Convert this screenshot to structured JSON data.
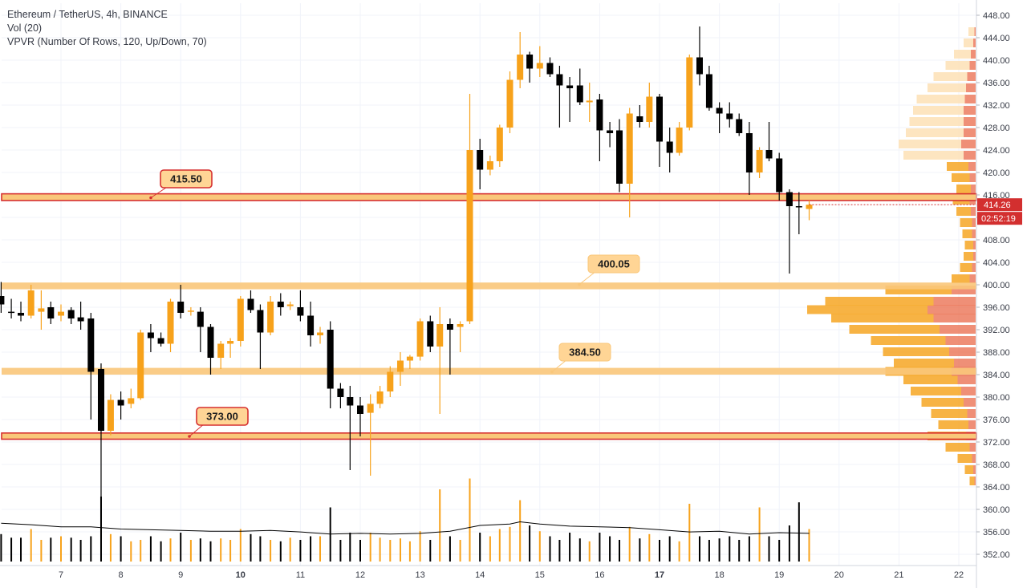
{
  "legend": {
    "symbol": "Ethereum / TetherUS, 4h, BINANCE",
    "volume": "Vol (20)",
    "vpvr": "VPVR (Number Of Rows, 120, Up/Down, 70)"
  },
  "colors": {
    "up": "#f7a21b",
    "down": "#000000",
    "zone_orange": "#f9c77a",
    "zone_red": "#d62f2f",
    "label_fill": "#ffd595",
    "price_tag": "#d32f2f",
    "vpvr_dark": "#f6a623",
    "vpvr_light": "#fde0b5",
    "vpvr_red": "#e9694a",
    "vol_ma": "#000000",
    "axis_text": "#363a45",
    "grid": "#f0f3fa"
  },
  "chart_data": {
    "type": "candlestick",
    "title": "Ethereum / TetherUS, 4h, BINANCE",
    "interval_hours": 4,
    "x_axis": {
      "labels": [
        "7",
        "8",
        "9",
        "10",
        "11",
        "12",
        "13",
        "14",
        "15",
        "16",
        "17",
        "18",
        "19",
        "20",
        "21",
        "22"
      ],
      "bold_labels": [
        "10",
        "17"
      ],
      "range_day": [
        6.0,
        22.2
      ]
    },
    "y_axis": {
      "range": [
        350,
        450
      ],
      "tick_labels": [
        "352.00",
        "356.00",
        "360.00",
        "364.00",
        "368.00",
        "372.00",
        "376.00",
        "380.00",
        "384.00",
        "388.00",
        "392.00",
        "396.00",
        "400.00",
        "404.00",
        "408.00",
        "412.00",
        "416.00",
        "420.00",
        "424.00",
        "428.00",
        "432.00",
        "436.00",
        "440.00",
        "444.00",
        "448.00"
      ]
    },
    "current_price": "414.26",
    "countdown": "02:52:19",
    "levels": [
      {
        "value": 415.5,
        "label": "415.50",
        "style": "red",
        "band": [
          415.0,
          416.2
        ]
      },
      {
        "value": 400.05,
        "label": "400.05",
        "style": "orange",
        "band": [
          399.2,
          400.4
        ]
      },
      {
        "value": 384.5,
        "label": "384.50",
        "style": "orange",
        "band": [
          384.0,
          385.2
        ]
      },
      {
        "value": 373.0,
        "label": "373.00",
        "style": "red",
        "band": [
          372.5,
          373.6
        ]
      }
    ],
    "candles": [
      {
        "t": 6.0,
        "o": 398.0,
        "h": 400.5,
        "l": 395.0,
        "c": 396.5
      },
      {
        "t": 6.17,
        "o": 395.2,
        "h": 397.5,
        "l": 394.0,
        "c": 395.0
      },
      {
        "t": 6.33,
        "o": 395.0,
        "h": 397.0,
        "l": 393.5,
        "c": 394.5
      },
      {
        "t": 6.5,
        "o": 394.5,
        "h": 400.0,
        "l": 394.0,
        "c": 399.0
      },
      {
        "t": 6.67,
        "o": 395.2,
        "h": 399.0,
        "l": 392.0,
        "c": 395.8
      },
      {
        "t": 6.83,
        "o": 396.0,
        "h": 397.0,
        "l": 393.0,
        "c": 394.0
      },
      {
        "t": 7.0,
        "o": 394.5,
        "h": 396.5,
        "l": 393.5,
        "c": 395.2
      },
      {
        "t": 7.17,
        "o": 395.5,
        "h": 396.0,
        "l": 393.0,
        "c": 394.0
      },
      {
        "t": 7.33,
        "o": 394.2,
        "h": 397.0,
        "l": 392.0,
        "c": 393.5
      },
      {
        "t": 7.5,
        "o": 394.0,
        "h": 395.0,
        "l": 376.0,
        "c": 384.5
      },
      {
        "t": 7.67,
        "o": 385.0,
        "h": 386.0,
        "l": 355.0,
        "c": 374.0
      },
      {
        "t": 7.83,
        "o": 374.0,
        "h": 380.5,
        "l": 373.2,
        "c": 379.5
      },
      {
        "t": 8.0,
        "o": 379.5,
        "h": 381.0,
        "l": 376.0,
        "c": 378.5
      },
      {
        "t": 8.17,
        "o": 378.8,
        "h": 381.5,
        "l": 378.0,
        "c": 379.8
      },
      {
        "t": 8.33,
        "o": 379.8,
        "h": 392.0,
        "l": 379.5,
        "c": 391.5
      },
      {
        "t": 8.5,
        "o": 391.5,
        "h": 393.0,
        "l": 388.0,
        "c": 390.5
      },
      {
        "t": 8.67,
        "o": 390.5,
        "h": 391.5,
        "l": 389.0,
        "c": 389.5
      },
      {
        "t": 8.83,
        "o": 389.5,
        "h": 397.5,
        "l": 388.0,
        "c": 397.0
      },
      {
        "t": 9.0,
        "o": 397.0,
        "h": 400.0,
        "l": 394.0,
        "c": 395.0
      },
      {
        "t": 9.17,
        "o": 395.2,
        "h": 396.0,
        "l": 394.5,
        "c": 395.4
      },
      {
        "t": 9.33,
        "o": 395.2,
        "h": 396.0,
        "l": 388.0,
        "c": 392.5
      },
      {
        "t": 9.5,
        "o": 392.5,
        "h": 393.0,
        "l": 384.0,
        "c": 387.0
      },
      {
        "t": 9.67,
        "o": 387.0,
        "h": 390.0,
        "l": 385.0,
        "c": 389.5
      },
      {
        "t": 9.83,
        "o": 389.5,
        "h": 390.5,
        "l": 387.0,
        "c": 390.0
      },
      {
        "t": 10.0,
        "o": 390.0,
        "h": 398.0,
        "l": 389.0,
        "c": 397.5
      },
      {
        "t": 10.17,
        "o": 397.5,
        "h": 399.0,
        "l": 395.0,
        "c": 395.5
      },
      {
        "t": 10.33,
        "o": 395.5,
        "h": 396.5,
        "l": 385.0,
        "c": 391.5
      },
      {
        "t": 10.5,
        "o": 391.5,
        "h": 398.0,
        "l": 391.0,
        "c": 397.0
      },
      {
        "t": 10.67,
        "o": 397.0,
        "h": 398.5,
        "l": 394.5,
        "c": 396.0
      },
      {
        "t": 10.83,
        "o": 396.2,
        "h": 397.0,
        "l": 395.5,
        "c": 396.5
      },
      {
        "t": 11.0,
        "o": 396.0,
        "h": 399.0,
        "l": 393.5,
        "c": 394.5
      },
      {
        "t": 11.17,
        "o": 394.5,
        "h": 397.0,
        "l": 389.0,
        "c": 391.0
      },
      {
        "t": 11.33,
        "o": 391.0,
        "h": 392.5,
        "l": 389.5,
        "c": 391.5
      },
      {
        "t": 11.5,
        "o": 392.0,
        "h": 393.5,
        "l": 378.0,
        "c": 381.5
      },
      {
        "t": 11.67,
        "o": 381.5,
        "h": 382.5,
        "l": 378.0,
        "c": 380.0
      },
      {
        "t": 11.83,
        "o": 380.0,
        "h": 382.0,
        "l": 367.0,
        "c": 378.5
      },
      {
        "t": 12.0,
        "o": 378.5,
        "h": 380.0,
        "l": 373.0,
        "c": 377.0
      },
      {
        "t": 12.17,
        "o": 377.2,
        "h": 380.5,
        "l": 366.0,
        "c": 378.8
      },
      {
        "t": 12.33,
        "o": 378.8,
        "h": 382.0,
        "l": 378.0,
        "c": 381.0
      },
      {
        "t": 12.5,
        "o": 381.0,
        "h": 385.5,
        "l": 380.0,
        "c": 384.5
      },
      {
        "t": 12.67,
        "o": 384.5,
        "h": 388.0,
        "l": 382.0,
        "c": 386.5
      },
      {
        "t": 12.83,
        "o": 386.5,
        "h": 387.5,
        "l": 385.0,
        "c": 387.2
      },
      {
        "t": 13.0,
        "o": 387.2,
        "h": 394.0,
        "l": 386.5,
        "c": 393.5
      },
      {
        "t": 13.17,
        "o": 393.5,
        "h": 394.5,
        "l": 388.0,
        "c": 389.0
      },
      {
        "t": 13.33,
        "o": 389.0,
        "h": 396.0,
        "l": 377.0,
        "c": 393.0
      },
      {
        "t": 13.5,
        "o": 393.0,
        "h": 394.0,
        "l": 384.0,
        "c": 392.0
      },
      {
        "t": 13.67,
        "o": 392.5,
        "h": 393.5,
        "l": 388.0,
        "c": 393.0
      },
      {
        "t": 13.83,
        "o": 393.5,
        "h": 434.0,
        "l": 393.0,
        "c": 424.0
      },
      {
        "t": 14.0,
        "o": 424.0,
        "h": 426.0,
        "l": 417.0,
        "c": 420.5
      },
      {
        "t": 14.17,
        "o": 420.5,
        "h": 423.0,
        "l": 419.5,
        "c": 422.0
      },
      {
        "t": 14.33,
        "o": 422.0,
        "h": 428.5,
        "l": 421.0,
        "c": 428.0
      },
      {
        "t": 14.5,
        "o": 428.0,
        "h": 438.0,
        "l": 427.0,
        "c": 436.5
      },
      {
        "t": 14.67,
        "o": 436.5,
        "h": 445.0,
        "l": 435.0,
        "c": 441.0
      },
      {
        "t": 14.83,
        "o": 441.0,
        "h": 441.5,
        "l": 436.0,
        "c": 438.5
      },
      {
        "t": 15.0,
        "o": 438.5,
        "h": 442.5,
        "l": 437.0,
        "c": 439.5
      },
      {
        "t": 15.17,
        "o": 439.5,
        "h": 440.5,
        "l": 437.0,
        "c": 437.5
      },
      {
        "t": 15.33,
        "o": 437.5,
        "h": 439.0,
        "l": 428.0,
        "c": 435.5
      },
      {
        "t": 15.5,
        "o": 435.5,
        "h": 437.0,
        "l": 429.0,
        "c": 435.0
      },
      {
        "t": 15.67,
        "o": 435.5,
        "h": 438.5,
        "l": 432.0,
        "c": 432.5
      },
      {
        "t": 15.83,
        "o": 432.5,
        "h": 436.0,
        "l": 429.0,
        "c": 432.8
      },
      {
        "t": 16.0,
        "o": 433.0,
        "h": 434.0,
        "l": 422.0,
        "c": 427.5
      },
      {
        "t": 16.17,
        "o": 427.5,
        "h": 429.0,
        "l": 424.5,
        "c": 427.0
      },
      {
        "t": 16.33,
        "o": 427.5,
        "h": 429.5,
        "l": 416.5,
        "c": 418.0
      },
      {
        "t": 16.5,
        "o": 418.0,
        "h": 431.5,
        "l": 412.0,
        "c": 430.5
      },
      {
        "t": 16.67,
        "o": 430.0,
        "h": 432.0,
        "l": 428.0,
        "c": 429.0
      },
      {
        "t": 16.83,
        "o": 429.0,
        "h": 436.0,
        "l": 428.0,
        "c": 433.5
      },
      {
        "t": 17.0,
        "o": 433.5,
        "h": 434.0,
        "l": 421.0,
        "c": 425.5
      },
      {
        "t": 17.17,
        "o": 425.5,
        "h": 428.0,
        "l": 420.0,
        "c": 423.5
      },
      {
        "t": 17.33,
        "o": 423.5,
        "h": 429.0,
        "l": 423.0,
        "c": 428.0
      },
      {
        "t": 17.5,
        "o": 428.0,
        "h": 441.0,
        "l": 427.5,
        "c": 440.5
      },
      {
        "t": 17.67,
        "o": 440.5,
        "h": 446.0,
        "l": 435.5,
        "c": 437.5
      },
      {
        "t": 17.83,
        "o": 437.5,
        "h": 439.0,
        "l": 431.0,
        "c": 431.5
      },
      {
        "t": 18.0,
        "o": 431.5,
        "h": 432.5,
        "l": 427.0,
        "c": 430.5
      },
      {
        "t": 18.17,
        "o": 430.5,
        "h": 432.5,
        "l": 428.0,
        "c": 429.5
      },
      {
        "t": 18.33,
        "o": 429.5,
        "h": 430.5,
        "l": 426.5,
        "c": 427.0
      },
      {
        "t": 18.5,
        "o": 427.0,
        "h": 429.0,
        "l": 416.0,
        "c": 420.0
      },
      {
        "t": 18.67,
        "o": 420.0,
        "h": 424.5,
        "l": 419.0,
        "c": 424.0
      },
      {
        "t": 18.83,
        "o": 424.0,
        "h": 429.0,
        "l": 422.0,
        "c": 422.5
      },
      {
        "t": 19.0,
        "o": 422.5,
        "h": 423.5,
        "l": 415.0,
        "c": 416.5
      },
      {
        "t": 19.17,
        "o": 416.5,
        "h": 417.0,
        "l": 402.0,
        "c": 414.0
      },
      {
        "t": 19.33,
        "o": 414.0,
        "h": 416.5,
        "l": 409.0,
        "c": 413.8
      },
      {
        "t": 19.5,
        "o": 413.5,
        "h": 415.0,
        "l": 411.5,
        "c": 414.26
      }
    ],
    "volume": {
      "ma_period": 20,
      "note": "relative volume per candle, same order as candles",
      "values": [
        0.38,
        0.33,
        0.33,
        0.45,
        0.3,
        0.33,
        0.35,
        0.33,
        0.3,
        0.35,
        0.9,
        0.38,
        0.35,
        0.28,
        0.3,
        0.35,
        0.28,
        0.32,
        0.4,
        0.3,
        0.32,
        0.28,
        0.32,
        0.3,
        0.45,
        0.38,
        0.35,
        0.3,
        0.28,
        0.33,
        0.3,
        0.35,
        0.35,
        0.75,
        0.3,
        0.4,
        0.3,
        0.4,
        0.33,
        0.3,
        0.32,
        0.28,
        0.42,
        0.3,
        1.0,
        0.35,
        0.3,
        1.15,
        0.4,
        0.35,
        0.45,
        0.48,
        0.85,
        0.5,
        0.42,
        0.35,
        0.3,
        0.4,
        0.32,
        0.28,
        0.4,
        0.35,
        0.3,
        0.48,
        0.32,
        0.38,
        0.3,
        0.35,
        0.28,
        0.8,
        0.35,
        0.3,
        0.32,
        0.35,
        0.3,
        0.35,
        0.75,
        0.35,
        0.3,
        0.5,
        0.82,
        0.45,
        0.05
      ]
    },
    "volume_ma": {
      "note": "relative Vol(20) moving average, sampled across the day axis",
      "points": [
        [
          6.0,
          0.53
        ],
        [
          6.5,
          0.51
        ],
        [
          7.0,
          0.48
        ],
        [
          7.5,
          0.48
        ],
        [
          8.0,
          0.45
        ],
        [
          8.5,
          0.44
        ],
        [
          9.0,
          0.43
        ],
        [
          9.5,
          0.42
        ],
        [
          10.0,
          0.42
        ],
        [
          10.5,
          0.43
        ],
        [
          11.0,
          0.41
        ],
        [
          11.5,
          0.38
        ],
        [
          12.0,
          0.39
        ],
        [
          12.5,
          0.38
        ],
        [
          13.0,
          0.39
        ],
        [
          13.5,
          0.42
        ],
        [
          14.0,
          0.5
        ],
        [
          14.5,
          0.52
        ],
        [
          14.67,
          0.55
        ],
        [
          15.0,
          0.52
        ],
        [
          15.5,
          0.49
        ],
        [
          16.0,
          0.48
        ],
        [
          16.5,
          0.47
        ],
        [
          17.0,
          0.44
        ],
        [
          17.5,
          0.41
        ],
        [
          18.0,
          0.42
        ],
        [
          18.5,
          0.38
        ],
        [
          19.0,
          0.4
        ],
        [
          19.5,
          0.39
        ]
      ]
    },
    "vpvr": {
      "note": "relative volume per price level: [price, up, down]",
      "rows": [
        [
          365,
          0.04,
          0.01
        ],
        [
          367,
          0.07,
          0.02
        ],
        [
          369,
          0.12,
          0.03
        ],
        [
          371,
          0.2,
          0.05
        ],
        [
          373,
          0.32,
          0.08
        ],
        [
          375,
          0.25,
          0.06
        ],
        [
          377,
          0.3,
          0.07
        ],
        [
          379,
          0.35,
          0.1
        ],
        [
          381,
          0.42,
          0.12
        ],
        [
          383,
          0.45,
          0.15
        ],
        [
          384.5,
          0.55,
          0.2
        ],
        [
          386,
          0.5,
          0.18
        ],
        [
          388,
          0.55,
          0.22
        ],
        [
          390,
          0.62,
          0.25
        ],
        [
          392,
          0.75,
          0.3
        ],
        [
          394,
          0.85,
          0.35
        ],
        [
          395.5,
          1.0,
          0.4
        ],
        [
          397,
          0.9,
          0.35
        ],
        [
          399,
          0.55,
          0.2
        ],
        [
          401,
          0.15,
          0.05
        ],
        [
          403,
          0.1,
          0.03
        ],
        [
          405,
          0.08,
          0.02
        ],
        [
          407,
          0.07,
          0.02
        ],
        [
          409,
          0.08,
          0.03
        ],
        [
          411,
          0.1,
          0.03
        ],
        [
          413,
          0.12,
          0.04
        ],
        [
          415,
          0.14,
          0.05
        ],
        [
          417,
          0.12,
          0.04
        ],
        [
          419,
          0.15,
          0.05
        ],
        [
          421,
          0.18,
          0.06
        ],
        [
          423,
          0.5,
          0.1
        ],
        [
          425,
          0.52,
          0.12
        ],
        [
          427,
          0.48,
          0.1
        ],
        [
          429,
          0.45,
          0.1
        ],
        [
          431,
          0.42,
          0.1
        ],
        [
          433,
          0.4,
          0.09
        ],
        [
          435,
          0.32,
          0.08
        ],
        [
          437,
          0.28,
          0.07
        ],
        [
          439,
          0.2,
          0.05
        ],
        [
          441,
          0.14,
          0.04
        ],
        [
          443,
          0.08,
          0.02
        ],
        [
          445,
          0.05,
          0.01
        ]
      ]
    }
  }
}
